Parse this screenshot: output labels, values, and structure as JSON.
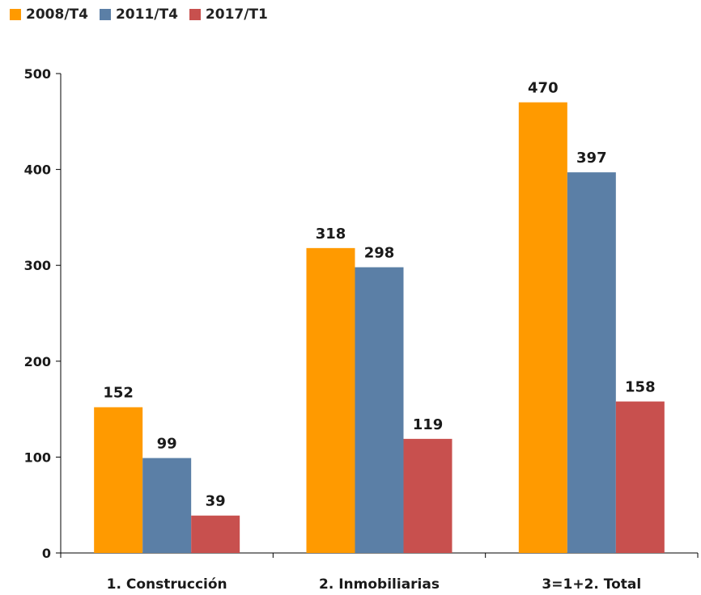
{
  "chart_data": {
    "type": "bar",
    "categories": [
      "1. Construcción",
      "2. Inmobiliarias",
      "3=1+2. Total"
    ],
    "series": [
      {
        "name": "2008/T4",
        "color": "#FF9A00",
        "values": [
          152,
          318,
          470
        ]
      },
      {
        "name": "2011/T4",
        "color": "#5B7FA6",
        "values": [
          99,
          298,
          397
        ]
      },
      {
        "name": "2017/T1",
        "color": "#C8504E",
        "values": [
          39,
          119,
          158
        ]
      }
    ],
    "ylim": [
      0,
      500
    ],
    "yticks": [
      0,
      100,
      200,
      300,
      400,
      500
    ],
    "grid": false,
    "legend": "top-left",
    "data_labels": true
  }
}
